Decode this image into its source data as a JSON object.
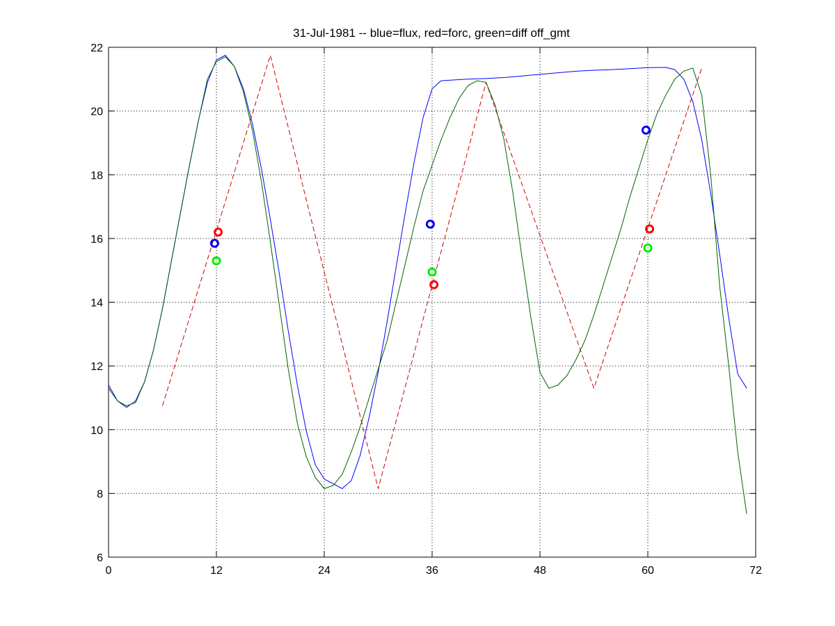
{
  "chart_data": {
    "type": "line",
    "title": "31-Jul-1981 -- blue=flux, red=forc, green=diff off_gmt",
    "xlabel": "",
    "ylabel": "",
    "xlim": [
      0,
      72
    ],
    "ylim": [
      6,
      22
    ],
    "xticks": [
      0,
      12,
      24,
      36,
      48,
      60,
      72
    ],
    "yticks": [
      6,
      8,
      10,
      12,
      14,
      16,
      18,
      20,
      22
    ],
    "grid": true,
    "legend": "none",
    "series": [
      {
        "color": "#0000ff",
        "style": "solid",
        "x": [
          0,
          1,
          2,
          3,
          4,
          5,
          6,
          7,
          8,
          9,
          10,
          11,
          12,
          13,
          14,
          15,
          16,
          17,
          18,
          19,
          20,
          21,
          22,
          23,
          24,
          25,
          26,
          27,
          28,
          29,
          30,
          31,
          32,
          33,
          34,
          35,
          36,
          37,
          38,
          40,
          42,
          44,
          46,
          48,
          50,
          52,
          54,
          56,
          58,
          60,
          62,
          63,
          64,
          65,
          66,
          67,
          68,
          69,
          70,
          71
        ],
        "y": [
          11.4,
          10.9,
          10.7,
          10.9,
          11.5,
          12.5,
          13.8,
          15.3,
          16.8,
          18.3,
          19.7,
          20.9,
          21.6,
          21.75,
          21.4,
          20.7,
          19.6,
          18.2,
          16.6,
          14.9,
          13.1,
          11.4,
          9.95,
          8.9,
          8.45,
          8.3,
          8.15,
          8.4,
          9.2,
          10.4,
          11.8,
          13.4,
          15.1,
          16.8,
          18.4,
          19.8,
          20.7,
          20.95,
          20.97,
          21.0,
          21.02,
          21.05,
          21.1,
          21.15,
          21.2,
          21.25,
          21.28,
          21.3,
          21.33,
          21.36,
          21.37,
          21.3,
          21.0,
          20.3,
          19.1,
          17.4,
          15.5,
          13.5,
          11.75,
          11.3
        ]
      },
      {
        "color": "#cc0000",
        "style": "dashed",
        "x": [
          6,
          18,
          30,
          42,
          54,
          66
        ],
        "y": [
          10.75,
          21.75,
          8.15,
          20.9,
          11.3,
          21.35
        ]
      },
      {
        "color": "#006400",
        "style": "solid",
        "x": [
          0,
          1,
          2,
          3,
          4,
          5,
          6,
          7,
          8,
          9,
          10,
          11,
          12,
          13,
          14,
          15,
          16,
          17,
          18,
          19,
          20,
          21,
          22,
          23,
          24,
          25,
          26,
          27,
          28,
          29,
          30,
          31,
          32,
          33,
          34,
          35,
          36,
          37,
          38,
          39,
          40,
          41,
          42,
          43,
          44,
          45,
          46,
          47,
          48,
          49,
          50,
          51,
          52,
          53,
          54,
          55,
          56,
          57,
          58,
          59,
          60,
          61,
          62,
          63,
          64,
          65,
          66,
          67,
          68,
          69,
          70,
          71
        ],
        "y": [
          11.3,
          10.9,
          10.75,
          10.85,
          11.5,
          12.5,
          13.8,
          15.3,
          16.8,
          18.3,
          19.7,
          21.0,
          21.55,
          21.7,
          21.4,
          20.6,
          19.4,
          17.8,
          15.9,
          13.9,
          11.9,
          10.2,
          9.15,
          8.5,
          8.15,
          8.25,
          8.6,
          9.3,
          10.1,
          11.0,
          11.9,
          12.8,
          14.0,
          15.2,
          16.4,
          17.5,
          18.3,
          19.1,
          19.8,
          20.4,
          20.8,
          20.95,
          20.9,
          20.2,
          19.1,
          17.4,
          15.4,
          13.5,
          11.8,
          11.3,
          11.4,
          11.7,
          12.2,
          12.8,
          13.6,
          14.5,
          15.4,
          16.3,
          17.3,
          18.2,
          19.1,
          19.9,
          20.5,
          21.0,
          21.25,
          21.35,
          20.5,
          18.0,
          14.5,
          12.0,
          9.3,
          7.35
        ]
      }
    ],
    "markers": [
      {
        "color": "#0000ff",
        "x": 11.8,
        "y": 15.85
      },
      {
        "color": "#ff0000",
        "x": 12.2,
        "y": 16.2
      },
      {
        "color": "#00ee00",
        "x": 12.0,
        "y": 15.3
      },
      {
        "color": "#0000ff",
        "x": 35.8,
        "y": 16.45
      },
      {
        "color": "#00ee00",
        "x": 36.0,
        "y": 14.95
      },
      {
        "color": "#ff0000",
        "x": 36.2,
        "y": 14.55
      },
      {
        "color": "#0000ff",
        "x": 59.8,
        "y": 19.4
      },
      {
        "color": "#ff0000",
        "x": 60.2,
        "y": 16.3
      },
      {
        "color": "#00ee00",
        "x": 60.0,
        "y": 15.7
      }
    ]
  }
}
